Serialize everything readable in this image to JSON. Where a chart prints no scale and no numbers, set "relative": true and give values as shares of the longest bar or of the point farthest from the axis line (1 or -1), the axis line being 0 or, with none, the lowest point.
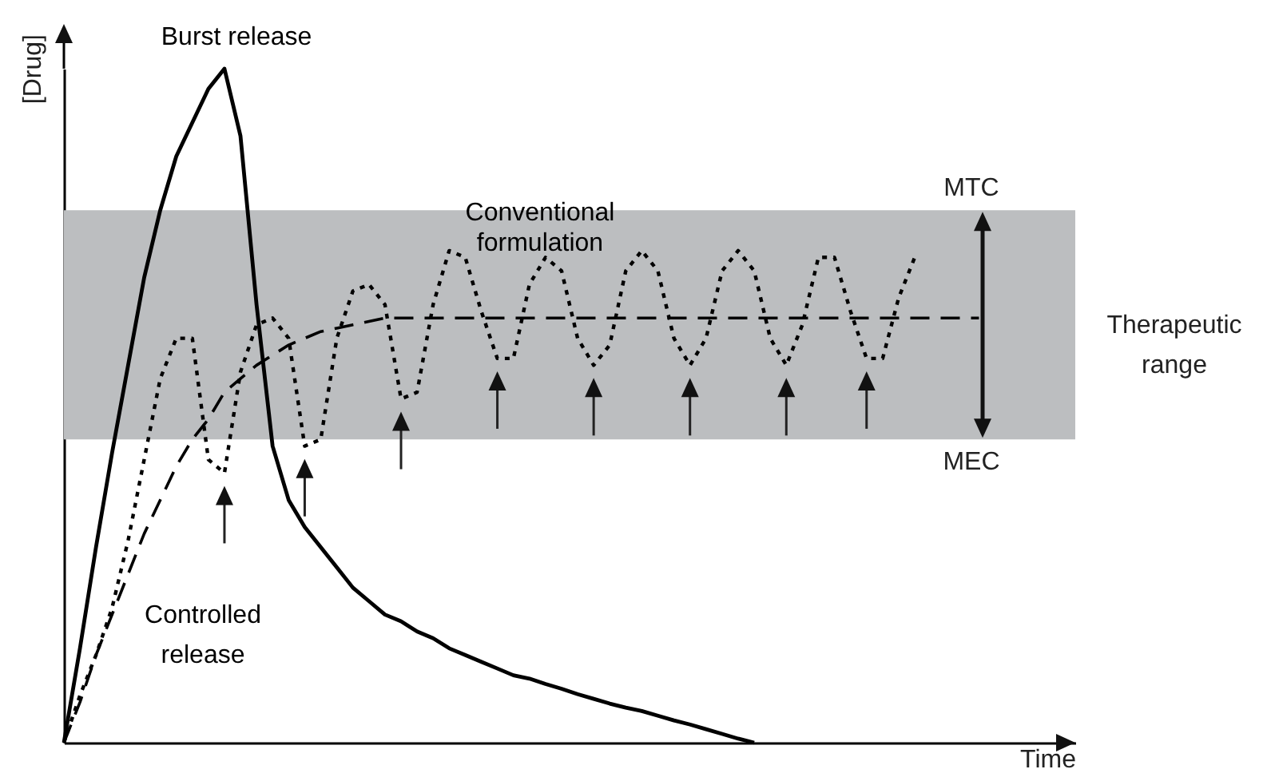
{
  "chart_data": {
    "type": "line",
    "xlabel": "Time",
    "ylabel": "[Drug]",
    "relative": true,
    "categories": [
      null,
      null,
      null,
      null,
      null,
      null,
      null,
      null,
      null,
      null,
      null,
      null,
      null,
      null,
      null,
      null,
      null,
      null,
      null,
      null,
      null,
      null,
      null,
      null,
      null,
      null,
      null,
      null,
      null,
      null,
      null,
      null,
      null,
      null,
      null,
      null,
      null,
      null,
      null,
      null,
      null,
      null,
      null,
      null,
      null,
      null,
      null,
      null,
      null,
      null,
      null,
      null,
      null,
      null,
      null,
      null,
      null,
      null,
      null,
      null,
      null,
      null,
      null,
      null
    ],
    "series": [
      {
        "name": "Burst release",
        "color": "#000000",
        "line_style": "solid",
        "values": [
          0,
          0.14,
          0.29,
          0.43,
          0.56,
          0.69,
          0.79,
          0.87,
          0.92,
          0.97,
          1,
          0.9,
          0.65,
          0.44,
          0.36,
          0.32,
          0.29,
          0.26,
          0.23,
          0.21,
          0.19,
          0.18,
          0.165,
          0.155,
          0.14,
          0.13,
          0.12,
          0.11,
          0.1,
          0.095,
          0.087,
          0.08,
          0.072,
          0.065,
          0.058,
          0.052,
          0.047,
          0.04,
          0.033,
          0.027,
          0.02,
          0.013,
          0.006,
          0,
          null,
          null,
          null,
          null,
          null,
          null,
          null,
          null,
          null,
          null,
          null,
          null,
          null,
          null,
          null,
          null,
          null,
          null,
          null,
          null
        ]
      },
      {
        "name": "Conventional formulation",
        "color": "#000000",
        "line_style": "dotted",
        "values": [
          0,
          0.07,
          0.13,
          0.2,
          0.3,
          0.42,
          0.54,
          0.6,
          0.6,
          0.42,
          0.4,
          0.55,
          0.62,
          0.63,
          0.6,
          0.44,
          0.45,
          0.6,
          0.67,
          0.68,
          0.65,
          0.51,
          0.52,
          0.65,
          0.73,
          0.72,
          0.64,
          0.57,
          0.57,
          0.68,
          0.72,
          0.7,
          0.6,
          0.56,
          0.59,
          0.7,
          0.73,
          0.7,
          0.6,
          0.56,
          0.6,
          0.7,
          0.73,
          0.7,
          0.6,
          0.56,
          0.62,
          0.72,
          0.72,
          0.64,
          0.57,
          0.57,
          0.66,
          0.72,
          null,
          null,
          null,
          null,
          null,
          null,
          null,
          null,
          null,
          null
        ]
      },
      {
        "name": "Controlled release",
        "color": "#000000",
        "line_style": "dashed",
        "values": [
          0,
          0.06,
          0.13,
          0.19,
          0.25,
          0.31,
          0.36,
          0.41,
          0.45,
          0.48,
          0.52,
          0.54,
          0.56,
          0.575,
          0.59,
          0.6,
          0.61,
          0.615,
          0.62,
          0.625,
          0.63,
          0.63,
          0.63,
          0.63,
          0.63,
          0.63,
          0.63,
          0.63,
          0.63,
          0.63,
          0.63,
          0.63,
          0.63,
          0.63,
          0.63,
          0.63,
          0.63,
          0.63,
          0.63,
          0.63,
          0.63,
          0.63,
          0.63,
          0.63,
          0.63,
          0.63,
          0.63,
          0.63,
          0.63,
          0.63,
          0.63,
          0.63,
          0.63,
          0.63,
          0.63,
          0.63,
          0.63,
          0.63,
          null,
          null,
          null,
          null,
          null,
          null
        ]
      }
    ],
    "bands": [
      {
        "axis": "y",
        "from": 0.45,
        "to": 0.79,
        "label": "Therapeutic range",
        "color": "#bcbec0"
      }
    ],
    "annotations": [
      {
        "text": "MTC",
        "y": 0.79
      },
      {
        "text": "MEC",
        "y": 0.45
      }
    ]
  }
}
